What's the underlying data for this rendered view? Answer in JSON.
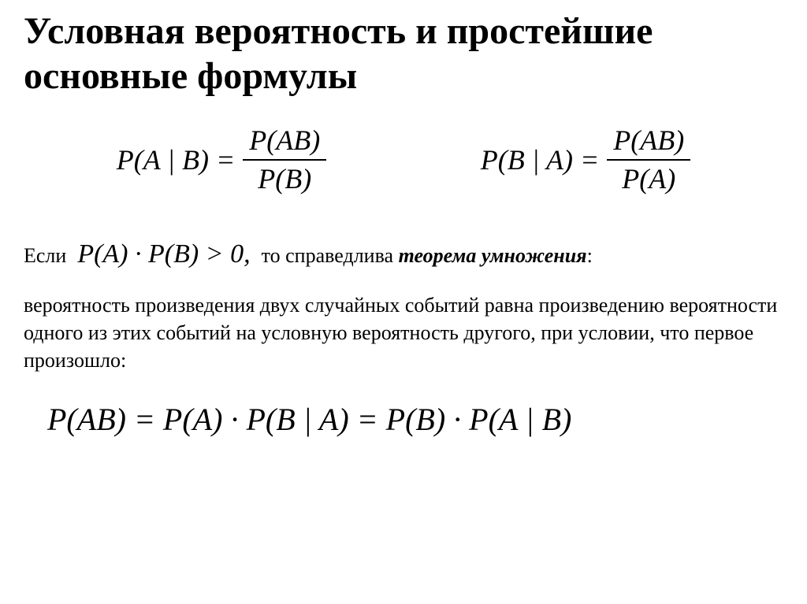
{
  "title": "Условная вероятность и простейшие основные формулы",
  "formula_left": {
    "lhs": "P(A | B) =",
    "num": "P(AB)",
    "den": "P(B)"
  },
  "formula_right": {
    "lhs": "P(B | A) =",
    "num": "P(AB)",
    "den": "P(A)"
  },
  "cond": {
    "if_word": "Если",
    "math": "P(A) · P(B) > 0,",
    "then_prefix": "то справедлива ",
    "then_em": "теорема умножения",
    "then_suffix": ":"
  },
  "theorem_text": "вероятность произведения двух случайных событий равна произведению вероятности одного из этих событий на условную вероятность другого, при условии, что первое произошло:",
  "final_formula": "P(AB) = P(A) · P(B | A) = P(B) · P(A | B)"
}
